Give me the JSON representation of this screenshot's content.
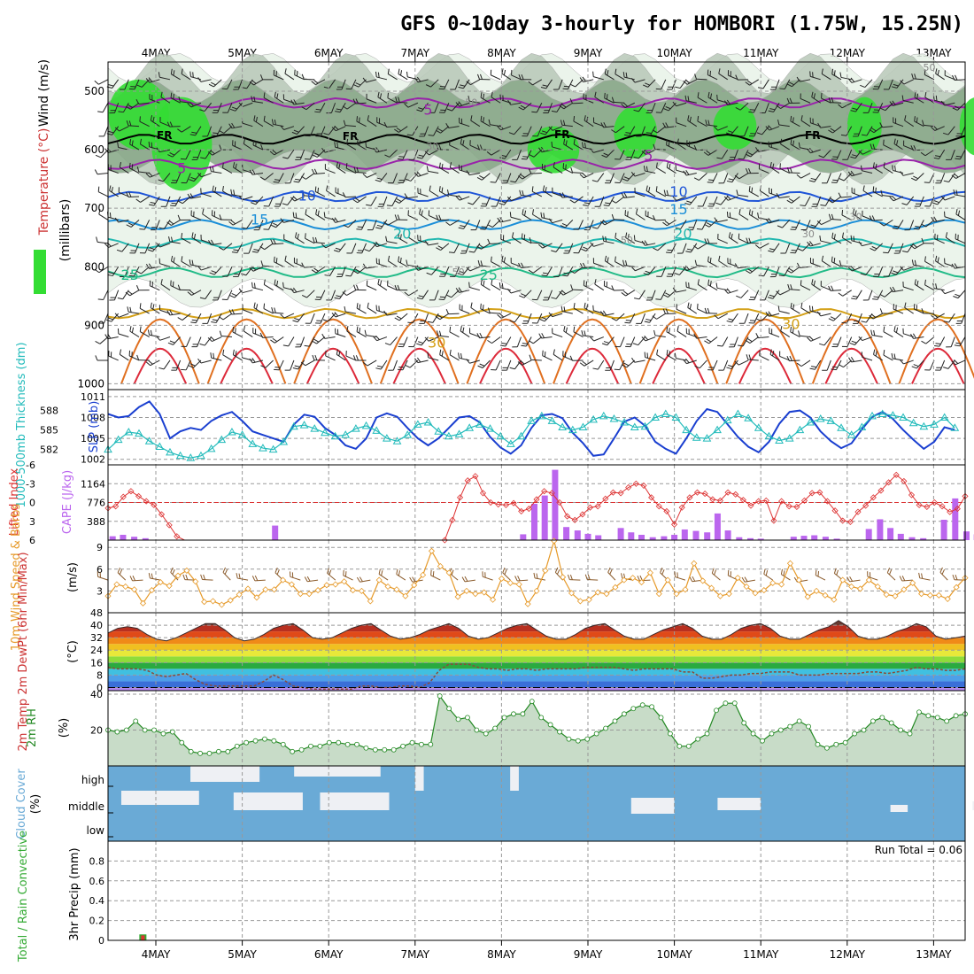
{
  "page": {
    "title": "GFS 0~10day 3-hourly for HOMBORI (1.75W, 15.25N)",
    "run_total_label": "Run Total = 0.06"
  },
  "colors": {
    "rh_light": "#e8f3e8",
    "rh_mid": "#b8c8b8",
    "rh_high": "#88a888",
    "rh_sat": "#33dd33",
    "slp": "#1a3fd0",
    "thickness": "#22bbbb",
    "lifted_index": "#dd3333",
    "cape": "#bb66ee",
    "wind10": "#e69a2a",
    "rh2m": "#228822",
    "rh2m_fill": "#c8dcc8",
    "cloud": "#6aaad6",
    "cloud_gap": "#eef0f4",
    "precip_total": "#33aa33",
    "precip_conv": "#dd3333",
    "dewpoint": "#8b4a3a"
  },
  "chart_data": [
    {
      "panel": "upper-air",
      "type": "heatmap",
      "x": [
        "4MAY",
        "5MAY",
        "6MAY",
        "7MAY",
        "8MAY",
        "9MAY",
        "10MAY",
        "11MAY",
        "12MAY",
        "13MAY"
      ],
      "ylabel": "(millibars)",
      "title_labels": {
        "wind": "Wind (m/s)",
        "temperature": "Temperature (°C)",
        "rh": "RH (%)"
      },
      "y_ticks": [
        500,
        600,
        700,
        800,
        900,
        1000
      ],
      "ylim": [
        1000,
        450
      ],
      "isotherm_labels": [
        {
          "text": "FR",
          "day": 0.1,
          "p": 582
        },
        {
          "text": "FR",
          "day": 2.25,
          "p": 583
        },
        {
          "text": "FR",
          "day": 4.7,
          "p": 580
        },
        {
          "text": "FR",
          "day": 7.6,
          "p": 582
        },
        {
          "text": "5",
          "day": 3.15,
          "p": 540
        },
        {
          "text": "5",
          "day": 0.3,
          "p": 640
        },
        {
          "text": "5",
          "day": 5.7,
          "p": 618
        },
        {
          "text": "10",
          "day": 1.75,
          "p": 687
        },
        {
          "text": "10",
          "day": 6.05,
          "p": 680
        },
        {
          "text": "15",
          "day": 1.2,
          "p": 728
        },
        {
          "text": "15",
          "day": 6.05,
          "p": 710
        },
        {
          "text": "20",
          "day": 2.85,
          "p": 752
        },
        {
          "text": "20",
          "day": 6.1,
          "p": 752
        },
        {
          "text": "25",
          "day": -0.3,
          "p": 822
        },
        {
          "text": "25",
          "day": 3.85,
          "p": 822
        },
        {
          "text": "30",
          "day": 3.25,
          "p": 938
        },
        {
          "text": "30",
          "day": 7.35,
          "p": 906
        }
      ],
      "rh_labels": [
        "30",
        "30",
        "50",
        "50",
        "50",
        "30",
        "50"
      ]
    },
    {
      "panel": "slp-thickness",
      "type": "line",
      "left_label": "1000-500mb Thickness (dm)",
      "right_label": "SLP (mb)",
      "slp_ticks": [
        1002,
        1005,
        1008,
        1011
      ],
      "thickness_ticks": [
        582,
        585,
        588
      ],
      "slp_ylim": [
        1001.2,
        1012
      ],
      "series": [
        {
          "name": "SLP",
          "values": [
            1008.5,
            1008,
            1008.2,
            1009.5,
            1010.3,
            1008.5,
            1005,
            1006,
            1006.5,
            1006.2,
            1007.5,
            1008.3,
            1008.8,
            1007.5,
            1006,
            1005.5,
            1005,
            1004.5,
            1007,
            1008.4,
            1008.1,
            1006.5,
            1005.5,
            1004,
            1003.5,
            1005,
            1008,
            1008.6,
            1008.1,
            1006.5,
            1005,
            1004,
            1005,
            1006.5,
            1008,
            1008.2,
            1007.3,
            1005.2,
            1003.7,
            1002.8,
            1004,
            1006.5,
            1008.3,
            1008.5,
            1007.9,
            1005.8,
            1004.3,
            1002.5,
            1002.7,
            1005,
            1007.4,
            1008,
            1006.8,
            1004.5,
            1003.5,
            1002.8,
            1005,
            1007.5,
            1009.2,
            1008.8,
            1007,
            1005.2,
            1003.8,
            1003,
            1004.5,
            1007.1,
            1008.8,
            1009,
            1008,
            1006,
            1004.6,
            1003.6,
            1004.3,
            1006.3,
            1008.1,
            1008.8,
            1007.8,
            1006.2,
            1004.8,
            1003.5,
            1004.5,
            1006.6,
            1006.2
          ]
        },
        {
          "name": "Thickness",
          "values": [
            1003.4,
            1004.8,
            1005.9,
            1005.7,
            1004.6,
            1003.8,
            1003,
            1002.5,
            1002.2,
            1002.5,
            1003.5,
            1004.8,
            1005.9,
            1005.5,
            1004.2,
            1003.6,
            1003.4,
            1004.5,
            1006.7,
            1006.9,
            1006.4,
            1005.8,
            1005.3,
            1005.5,
            1006.4,
            1006.8,
            1006.1,
            1005,
            1004.6,
            1005.5,
            1007,
            1007.3,
            1006,
            1005.3,
            1005.6,
            1006.5,
            1007,
            1006.4,
            1005.3,
            1004.2,
            1005.3,
            1007.5,
            1008.2,
            1007.5,
            1006.6,
            1006.2,
            1006.6,
            1007.7,
            1008.2,
            1007.8,
            1007.3,
            1006.6,
            1006.7,
            1008,
            1008.5,
            1008,
            1006.2,
            1005.1,
            1005,
            1006.2,
            1007.6,
            1008.5,
            1007.9,
            1006.5,
            1005.3,
            1004.7,
            1005,
            1006.2,
            1007.3,
            1007.8,
            1007.5,
            1006.5,
            1005.5,
            1006.6,
            1008.2,
            1008.5,
            1008.3,
            1008,
            1007.2,
            1006.7,
            1007,
            1008,
            1006.5
          ]
        }
      ]
    },
    {
      "panel": "lifted-cape",
      "type": "line",
      "left_label": "Lifted Index",
      "right_label": "CAPE (J/kg)",
      "li_ticks": [
        "-6",
        "-3",
        "0",
        "3",
        "6"
      ],
      "cape_ticks": [
        388,
        776,
        1164
      ],
      "cape_ylim": [
        0,
        1552
      ],
      "cape_x": [
        -0.5,
        -0.38,
        -0.25,
        -0.12,
        1.38,
        4.25,
        4.38,
        4.5,
        4.62,
        4.75,
        4.88,
        5.0,
        5.12,
        5.38,
        5.5,
        5.62,
        5.75,
        5.88,
        6.0,
        6.12,
        6.25,
        6.38,
        6.5,
        6.62,
        6.75,
        6.88,
        7.0,
        7.38,
        7.5,
        7.62,
        7.75,
        7.88,
        8.25,
        8.38,
        8.5,
        8.62,
        8.75,
        8.88,
        9.12,
        9.25,
        9.38,
        9.5
      ],
      "cape_values": [
        80,
        110,
        70,
        40,
        300,
        120,
        750,
        920,
        1450,
        270,
        200,
        130,
        100,
        250,
        160,
        110,
        60,
        80,
        110,
        220,
        190,
        160,
        550,
        200,
        60,
        40,
        30,
        70,
        90,
        100,
        70,
        30,
        230,
        430,
        250,
        130,
        60,
        40,
        420,
        860,
        180,
        120
      ],
      "li_values": [
        0.9,
        0.6,
        -0.9,
        -1.8,
        -1,
        -0.2,
        0.4,
        1.9,
        3.6,
        5.4,
        6.7,
        7.8,
        7.8,
        7.8,
        7.8,
        7.8,
        7.8,
        7.8,
        7.8,
        7.8,
        7.8,
        7.8,
        7.8,
        7.8,
        7.8,
        7.8,
        7.8,
        7.8,
        7.8,
        7.8,
        7.8,
        7.8,
        7.8,
        7.8,
        7.8,
        7.8,
        7.8,
        7.8,
        7.8,
        7.8,
        7.8,
        7.8,
        7.8,
        7.8,
        6,
        2.8,
        -0.8,
        -3.5,
        -4.2,
        -1.5,
        0,
        0.3,
        0.4,
        0.1,
        1.4,
        1,
        -0.5,
        -1.8,
        -1.5,
        0,
        2.2,
        2.8,
        1.9,
        0.8,
        0.6,
        -0.6,
        -1.6,
        -1.5,
        -2.4,
        -3,
        -2.7,
        -0.8,
        0.6,
        1.4,
        3.5,
        0.8,
        -0.8,
        -1.6,
        -1.4,
        -0.5,
        -0.3,
        -1.6,
        -1.3,
        -0.4,
        0.5,
        -0.2,
        -0.3,
        2.9,
        -0.2,
        0.6,
        0.7,
        -0.3,
        -1.5,
        -1.6,
        -0.2,
        1.3,
        2.9,
        3.1,
        1.5,
        0.5,
        -0.8,
        -1.9,
        -3.2,
        -4.4,
        -3.4,
        -1.2,
        0.4,
        0.7,
        0,
        0.6,
        1.5,
        1,
        -1
      ]
    },
    {
      "panel": "wind10m",
      "type": "line",
      "left_label": "10m Wind Speed & Barbs",
      "unit": "(m/s)",
      "y_ticks": [
        3,
        6,
        9
      ],
      "ylim": [
        0,
        10
      ],
      "values": [
        2.3,
        3.9,
        3.6,
        3.2,
        1.3,
        3.1,
        4.2,
        3.7,
        5.1,
        5.8,
        4.3,
        1.5,
        1.6,
        1.1,
        1.7,
        2.5,
        3.3,
        2.1,
        3.2,
        3.2,
        4.5,
        3.9,
        2.6,
        2.6,
        3.1,
        3.8,
        3.9,
        4.3,
        3.1,
        3,
        1.6,
        4.5,
        3.6,
        3.2,
        2.3,
        3.8,
        5.2,
        8.5,
        6.4,
        5.5,
        2.2,
        3,
        2.6,
        2.8,
        1.8,
        4.7,
        4.1,
        3.9,
        1.2,
        3,
        5.8,
        9.9,
        4.9,
        2.7,
        1.6,
        1.8,
        2.8,
        2.6,
        3.5,
        4.5,
        4.8,
        4.2,
        5.5,
        2.6,
        4.5,
        2.6,
        3.2,
        6.8,
        4.4,
        3.4,
        2.3,
        2.6,
        4.8,
        3.6,
        2.7,
        3.1,
        4.1,
        3.9,
        6.8,
        4.5,
        2.2,
        3,
        2.4,
        1.8,
        4.5,
        3.6,
        3.3,
        4.5,
        3.6,
        2.5,
        2.3,
        3.2,
        4.1,
        2.6,
        2.4,
        2.4,
        1.9,
        3.5,
        4.8
      ]
    },
    {
      "panel": "temp2m",
      "type": "area",
      "left_label": "2m Temp 2m DewPt (6hr Min/Max)",
      "unit": "(°C)",
      "y_ticks": [
        0,
        8,
        16,
        24,
        32,
        40,
        48
      ],
      "ylim": [
        -2,
        48
      ],
      "temp_values": [
        35,
        38,
        39,
        38,
        34,
        31,
        30,
        32,
        35,
        38,
        41,
        41,
        37,
        32,
        30,
        31,
        34,
        38,
        40,
        41,
        37,
        32,
        31,
        32,
        35,
        38,
        40,
        41,
        37,
        33,
        31,
        32,
        34,
        37,
        39,
        41,
        38,
        33,
        31,
        32,
        35,
        38,
        40,
        41,
        37,
        33,
        31,
        31,
        34,
        38,
        40,
        41,
        37,
        33,
        31,
        31,
        34,
        37,
        39,
        41,
        38,
        33,
        31,
        31,
        34,
        38,
        40,
        41,
        38,
        33,
        31,
        31,
        34,
        37,
        39,
        43,
        39,
        33,
        31,
        31,
        33,
        36,
        38,
        41,
        39,
        33,
        31,
        32,
        33
      ],
      "dewpt_values": [
        13,
        12,
        12,
        12,
        11,
        8,
        7,
        8,
        9,
        5,
        2,
        1,
        1,
        1,
        1,
        1,
        4,
        8,
        5,
        1,
        0,
        -1,
        -1,
        -1,
        -1,
        -1,
        1,
        1,
        0,
        0,
        1,
        1,
        0,
        3,
        11,
        15,
        15,
        15,
        13,
        12,
        12,
        11,
        12,
        12,
        11,
        12,
        12,
        12,
        12,
        13,
        13,
        13,
        13,
        12,
        11,
        12,
        12,
        12,
        12,
        10,
        10,
        6,
        6,
        7,
        8,
        8,
        9,
        9,
        10,
        10,
        10,
        8,
        8,
        8,
        9,
        9,
        9,
        9,
        10,
        10,
        9,
        10,
        11,
        13,
        12,
        12,
        11,
        11,
        12
      ]
    },
    {
      "panel": "rh2m",
      "type": "area",
      "left_label": "2m RH",
      "unit": "(%)",
      "y_ticks": [
        20,
        40
      ],
      "ylim": [
        0,
        42
      ],
      "values": [
        20,
        19,
        20,
        25,
        20,
        20,
        18,
        19,
        13,
        8,
        7,
        7,
        8,
        8,
        11,
        13,
        14,
        15,
        14,
        12,
        8,
        9,
        11,
        11,
        13,
        13,
        12,
        12,
        10,
        9,
        9,
        9,
        11,
        13,
        12,
        12,
        39,
        32,
        26,
        27,
        20,
        18,
        21,
        27,
        29,
        29,
        36,
        27,
        23,
        19,
        15,
        14,
        15,
        18,
        21,
        25,
        29,
        32,
        34,
        33,
        27,
        18,
        11,
        11,
        15,
        18,
        31,
        35,
        35,
        24,
        18,
        14,
        18,
        20,
        22,
        25,
        22,
        12,
        10,
        12,
        13,
        18,
        20,
        25,
        27,
        24,
        20,
        18,
        30,
        28,
        27,
        25,
        28,
        29
      ]
    },
    {
      "panel": "cloud-cover",
      "type": "bar",
      "left_label": "Cloud Cover",
      "unit": "(%)",
      "levels": [
        "high",
        "middle",
        "low"
      ]
    },
    {
      "panel": "precip",
      "type": "bar",
      "left_label": "Total / Rain Convective",
      "axis_label": "3hr Precip (mm)",
      "y_ticks": [
        "0",
        "0.2",
        "0.4",
        "0.6",
        "0.8"
      ],
      "ylim": [
        0,
        1
      ],
      "bars": [
        {
          "day": -0.15,
          "total": 0.06,
          "convective": 0.05
        }
      ]
    }
  ]
}
